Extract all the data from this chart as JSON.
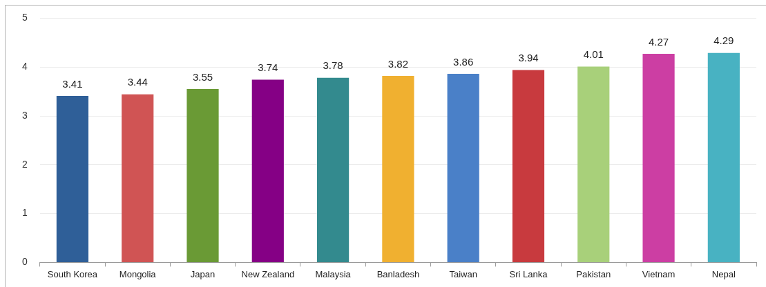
{
  "chart_data": {
    "type": "bar",
    "categories": [
      "South Korea",
      "Mongolia",
      "Japan",
      "New Zealand",
      "Malaysia",
      "Banladesh",
      "Taiwan",
      "Sri Lanka",
      "Pakistan",
      "Vietnam",
      "Nepal"
    ],
    "values": [
      3.41,
      3.44,
      3.55,
      3.74,
      3.78,
      3.82,
      3.86,
      3.94,
      4.01,
      4.27,
      4.29
    ],
    "colors": [
      "#2f5f98",
      "#d05454",
      "#6a9a35",
      "#850085",
      "#338a8e",
      "#f0b030",
      "#4a80c8",
      "#c83a3e",
      "#a8d07a",
      "#cc3ea3",
      "#48b2c2"
    ],
    "ylim": [
      0,
      5
    ],
    "yticks": [
      0,
      1,
      2,
      3,
      4,
      5
    ],
    "grid": "y",
    "data_labels": true
  }
}
